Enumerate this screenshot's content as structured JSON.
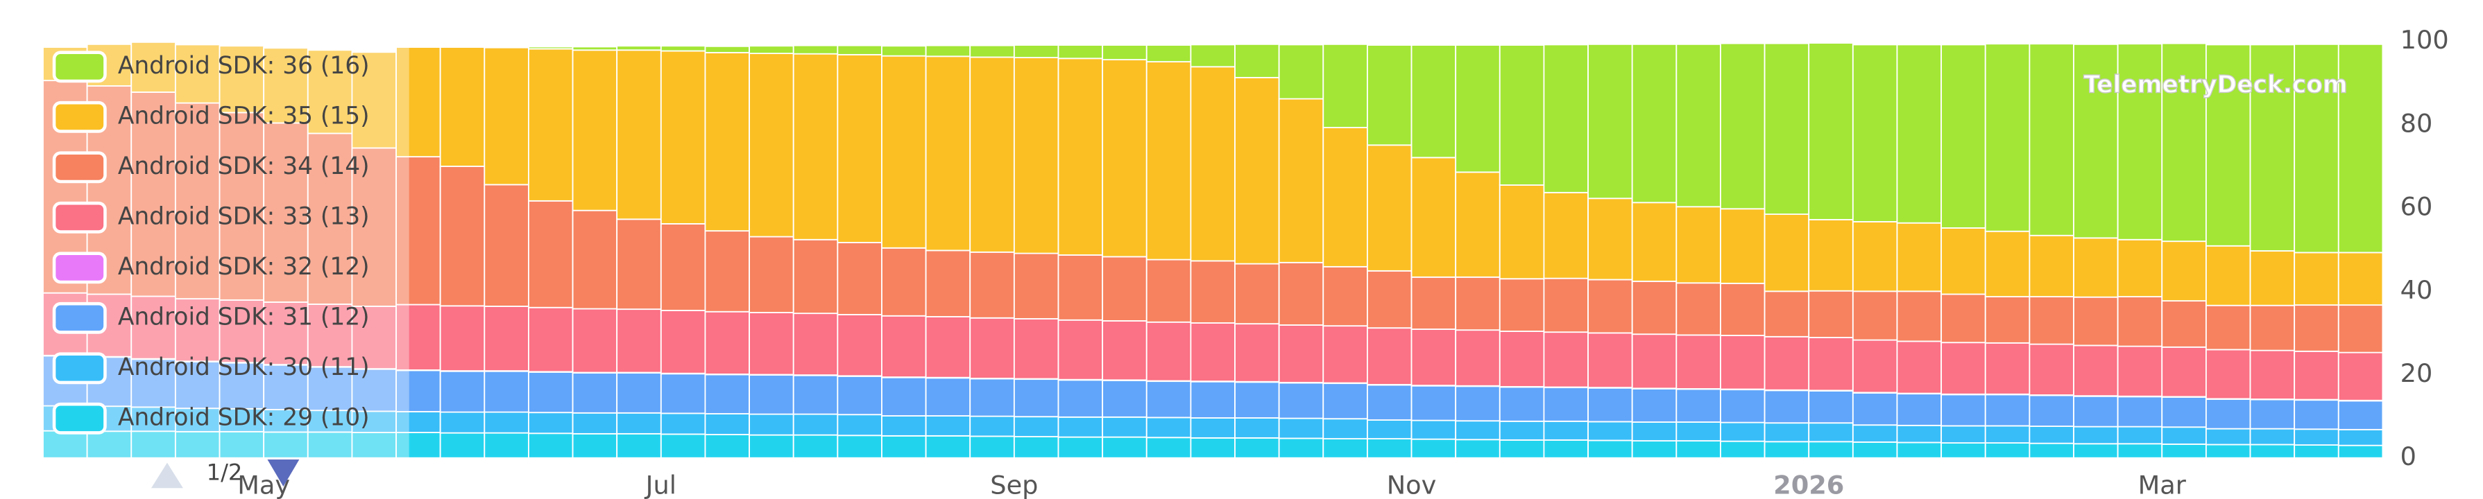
{
  "chart_data": {
    "type": "bar",
    "stacked": true,
    "watermark": "TelemetryDeck.com",
    "legend_page": "1/2",
    "legend": "top-left",
    "ylim": [
      0,
      100
    ],
    "yticks": [
      0,
      20,
      40,
      60,
      80,
      100
    ],
    "categories": [
      null,
      null,
      null,
      null,
      null,
      "May",
      null,
      null,
      null,
      null,
      null,
      null,
      null,
      null,
      "Jul",
      null,
      null,
      null,
      null,
      null,
      null,
      null,
      "Sep",
      null,
      null,
      null,
      null,
      null,
      null,
      null,
      null,
      "Nov",
      null,
      null,
      null,
      null,
      null,
      null,
      null,
      null,
      "2026",
      null,
      null,
      null,
      null,
      null,
      null,
      null,
      "Mar",
      null,
      null,
      null,
      null
    ],
    "series": [
      {
        "name": "Android SDK: 36 (16)",
        "color": "#a3e635",
        "values": [
          0,
          0,
          0,
          0,
          0,
          0,
          0,
          0,
          0,
          0,
          0.3,
          0.5,
          0.8,
          1,
          1.2,
          1.5,
          1.8,
          2,
          2.2,
          2.4,
          2.6,
          2.8,
          3,
          3.2,
          3.5,
          4,
          5.3,
          8,
          13,
          20,
          24,
          27,
          30.5,
          33.6,
          35.5,
          37,
          38,
          39,
          39.7,
          41,
          42.4,
          42.5,
          42.8,
          44,
          45,
          46,
          46.5,
          47,
          47.5,
          48.3,
          49.5,
          50,
          50
        ]
      },
      {
        "name": "Android SDK: 35 (15)",
        "color": "#fbbf24",
        "values": [
          8,
          10,
          12,
          14,
          16,
          18,
          20,
          23,
          26.3,
          28.6,
          32.9,
          36.5,
          38.5,
          40.6,
          41.5,
          42.8,
          44,
          44.6,
          45.1,
          46.1,
          46.6,
          46.8,
          47,
          47.2,
          47.3,
          47.5,
          46.6,
          44.7,
          39.3,
          33.4,
          30.2,
          28.7,
          25.2,
          22.5,
          20.6,
          19.5,
          18.9,
          18.3,
          17.9,
          18.5,
          17.1,
          16.7,
          16.4,
          15.9,
          15.7,
          14.7,
          14.2,
          13.7,
          14.3,
          14.3,
          13.1,
          12.6,
          12.6
        ]
      },
      {
        "name": "Android SDK: 34 (14)",
        "color": "#f6825f",
        "values": [
          51,
          50,
          49,
          47,
          45,
          43,
          41,
          38,
          35.5,
          33.5,
          29.2,
          25.6,
          23.6,
          21.6,
          20.8,
          19.4,
          18.2,
          17.7,
          17.3,
          16.3,
          15.9,
          15.8,
          15.7,
          15.6,
          15.4,
          15,
          14.9,
          14.4,
          15,
          14.2,
          13.7,
          12.5,
          12.7,
          12.6,
          12.9,
          12.8,
          12.7,
          12.5,
          12.5,
          10.9,
          11.2,
          11.7,
          12,
          11.6,
          11.1,
          11.4,
          11.6,
          11.9,
          11.1,
          10.6,
          10.8,
          11.1,
          11.4
        ]
      },
      {
        "name": "Android SDK: 33 (13)",
        "color": "#fb7185",
        "values": [
          15,
          15,
          15,
          15,
          15,
          15,
          15,
          15,
          15.7,
          15.6,
          15.5,
          15.4,
          15.3,
          15.2,
          15.1,
          15,
          14.9,
          14.8,
          14.7,
          14.7,
          14.6,
          14.5,
          14.4,
          14.3,
          14.2,
          14.1,
          14,
          13.9,
          13.8,
          13.7,
          13.6,
          13.5,
          13.4,
          13.3,
          13.2,
          13.1,
          13,
          12.9,
          12.9,
          12.8,
          12.7,
          12.6,
          12.5,
          12.4,
          12.3,
          12.2,
          12.1,
          12,
          11.9,
          11.8,
          11.7,
          11.6,
          11.5
        ]
      },
      {
        "name": "Android SDK: 32 (12)",
        "color": "#e879f9",
        "values": [
          0.1,
          0.1,
          0.1,
          0.1,
          0.1,
          0.1,
          0.1,
          0.1,
          0.1,
          0.1,
          0.1,
          0.1,
          0.1,
          0.1,
          0.1,
          0.1,
          0.1,
          0.1,
          0.1,
          0.1,
          0.1,
          0.1,
          0.1,
          0.1,
          0.1,
          0.1,
          0.1,
          0.1,
          0.1,
          0.1,
          0.1,
          0.1,
          0.1,
          0.1,
          0.1,
          0.1,
          0.1,
          0.1,
          0.1,
          0.1,
          0.1,
          0.1,
          0.1,
          0.1,
          0.1,
          0.1,
          0.1,
          0.1,
          0.1,
          0.1,
          0.1,
          0.1,
          0.1
        ]
      },
      {
        "name": "Android SDK: 31 (12)",
        "color": "#60a5fa",
        "values": [
          12,
          11.8,
          11.5,
          11.2,
          11,
          10.7,
          10.4,
          10.1,
          9.9,
          9.8,
          9.8,
          9.7,
          9.6,
          9.6,
          9.5,
          9.4,
          9.4,
          9.3,
          9.2,
          9.2,
          9.1,
          9,
          9,
          8.9,
          8.8,
          8.7,
          8.7,
          8.6,
          8.5,
          8.5,
          8.4,
          8.3,
          8.3,
          8.2,
          8.1,
          8.1,
          8,
          7.9,
          7.9,
          7.8,
          7.7,
          7.7,
          7.6,
          7.5,
          7.5,
          7.4,
          7.3,
          7.2,
          7.2,
          7.1,
          7,
          7,
          6.9
        ]
      },
      {
        "name": "Android SDK: 30 (11)",
        "color": "#38bdf8",
        "values": [
          6,
          6,
          5.8,
          5.6,
          5.5,
          5.4,
          5.2,
          5.1,
          5,
          5,
          5,
          5,
          5,
          5,
          5,
          5,
          5,
          5,
          5,
          4.8,
          4.8,
          4.8,
          4.8,
          4.8,
          4.8,
          4.8,
          4.8,
          4.8,
          4.8,
          4.8,
          4.5,
          4.5,
          4.5,
          4.5,
          4.5,
          4.5,
          4.5,
          4.5,
          4.5,
          4.5,
          4.5,
          4.1,
          4.1,
          4.1,
          4.1,
          4.1,
          4.1,
          4.1,
          4.1,
          3.8,
          3.8,
          3.8,
          3.8
        ]
      },
      {
        "name": "Android SDK: 29 (10)",
        "color": "#22d3ee",
        "values": [
          6.5,
          6.4,
          6.4,
          6.3,
          6.3,
          6.2,
          6.2,
          6.1,
          6.1,
          6,
          6,
          5.9,
          5.8,
          5.8,
          5.7,
          5.6,
          5.5,
          5.5,
          5.4,
          5.3,
          5.3,
          5.2,
          5.1,
          5,
          5,
          4.9,
          4.8,
          4.8,
          4.7,
          4.6,
          4.6,
          4.5,
          4.4,
          4.3,
          4.3,
          4.2,
          4.1,
          4.1,
          4,
          3.9,
          3.9,
          3.8,
          3.7,
          3.6,
          3.6,
          3.5,
          3.4,
          3.4,
          3.3,
          3.2,
          3.2,
          3.1,
          3
        ]
      }
    ]
  }
}
